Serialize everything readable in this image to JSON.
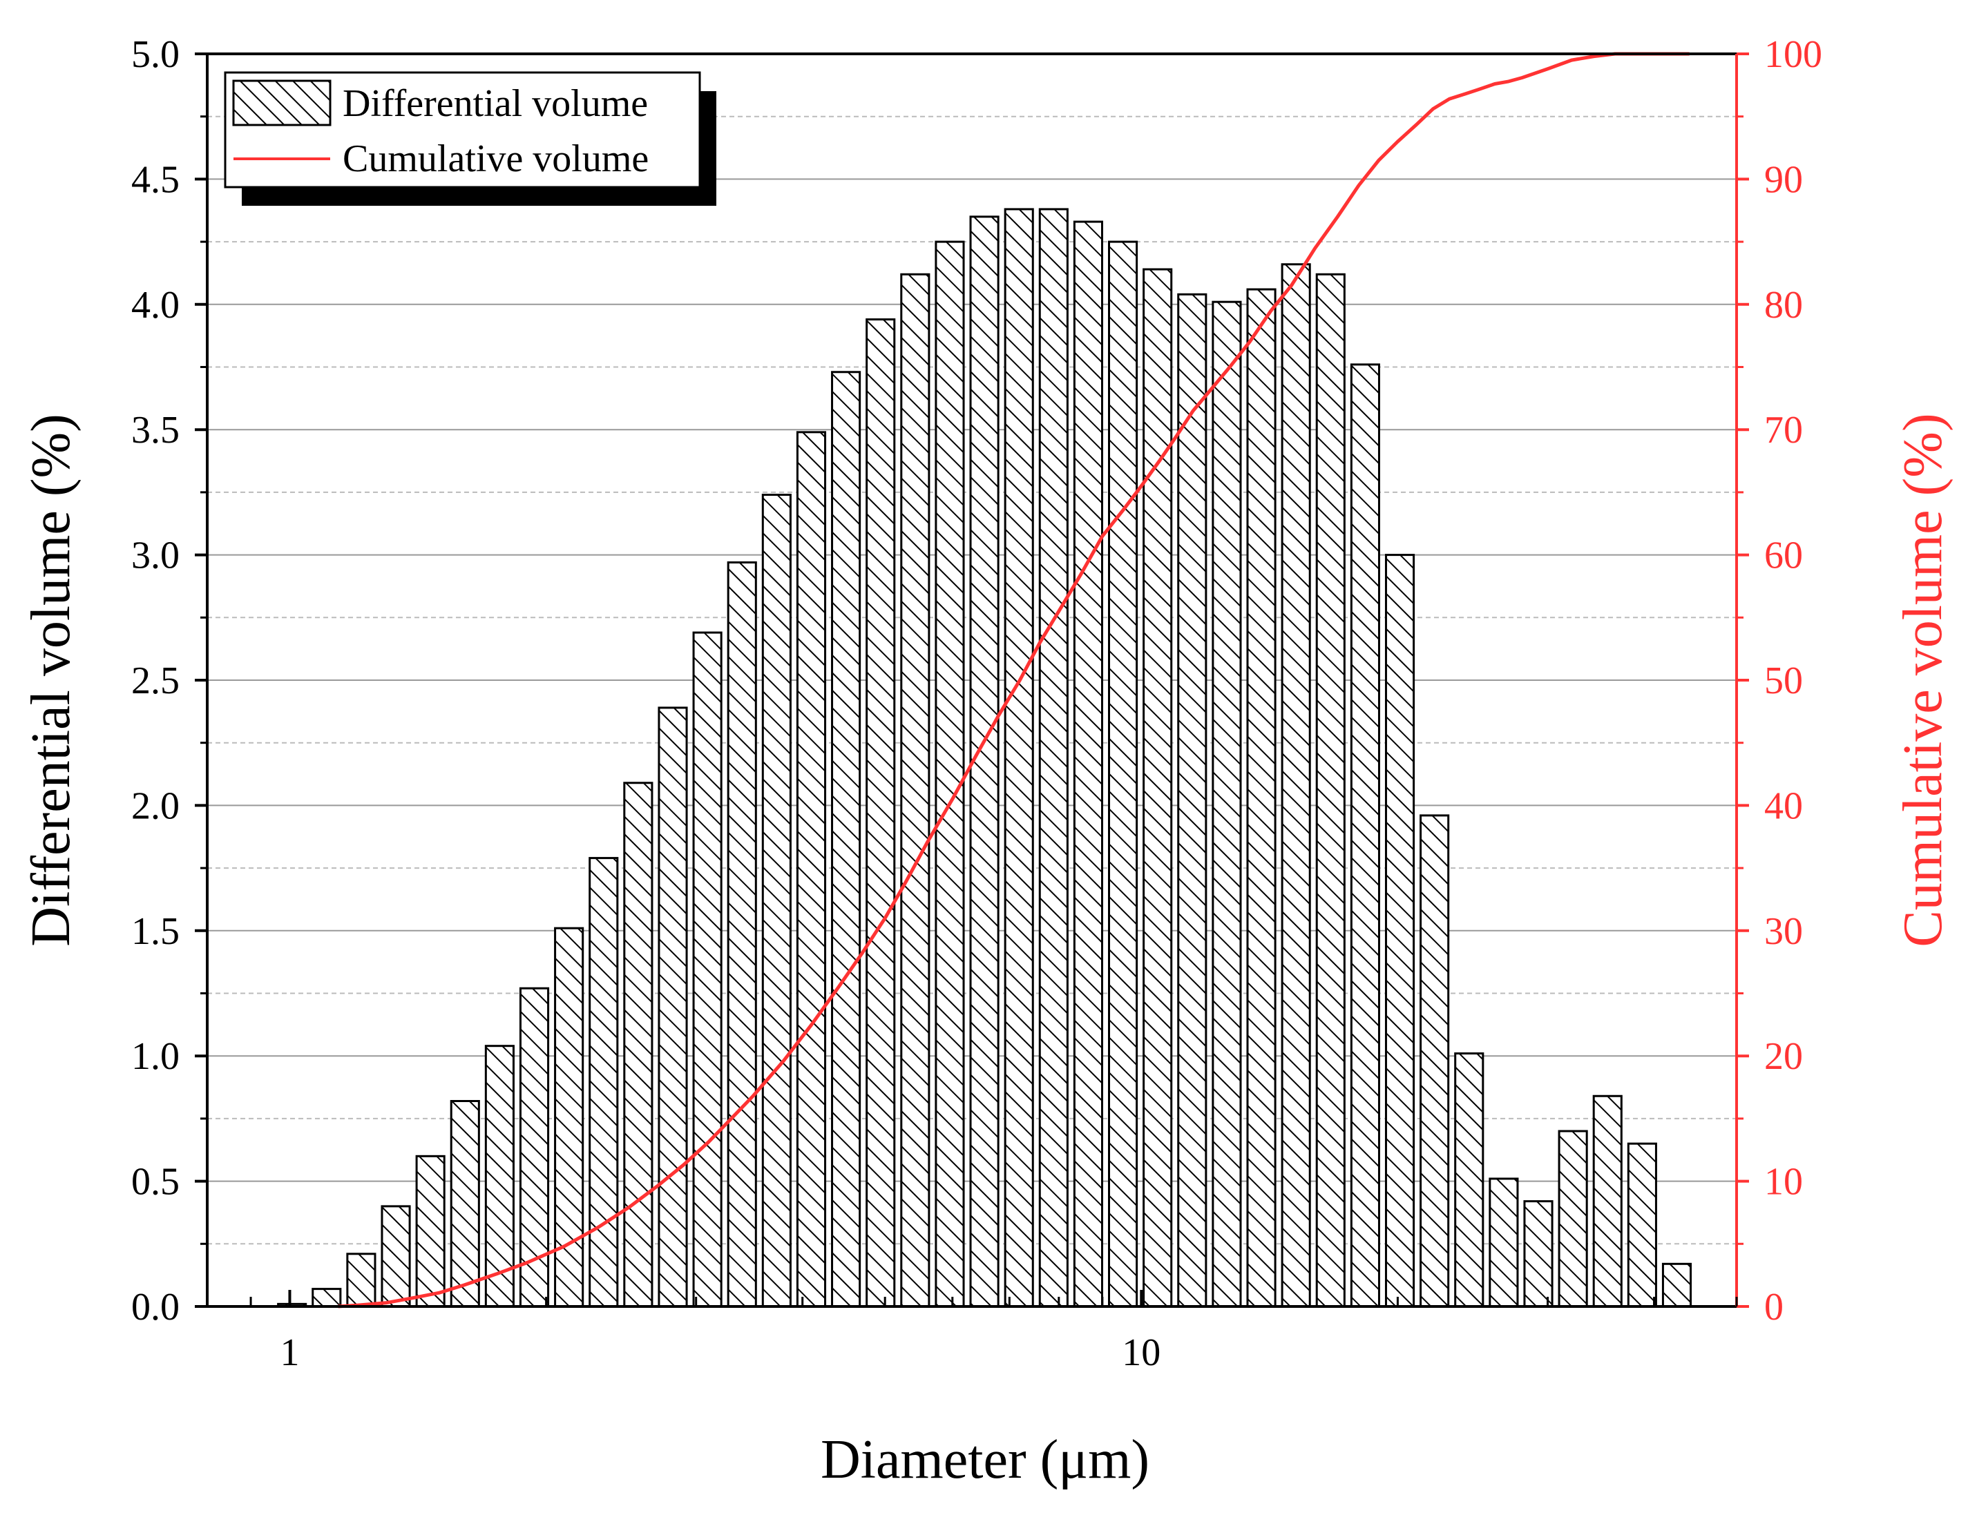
{
  "colors": {
    "bar_stroke": "#000000",
    "cumulative_line": "#ff3333",
    "right_axis": "#ff3333",
    "major_grid": "#999999",
    "minor_grid": "#bbbbbb"
  },
  "chart_data": {
    "type": "bar",
    "x_scale": "log",
    "xlabel": "Diameter (μm)",
    "ylabel": "Differential volume (%)",
    "y2label": "Cumulative volume (%)",
    "xlim": [
      0.8,
      50
    ],
    "ylim": [
      0,
      5.0
    ],
    "y2lim": [
      0,
      100
    ],
    "x_ticks": [
      1,
      10
    ],
    "x_tick_labels": [
      "1",
      "10"
    ],
    "y_ticks": [
      0.0,
      0.5,
      1.0,
      1.5,
      2.0,
      2.5,
      3.0,
      3.5,
      4.0,
      4.5,
      5.0
    ],
    "y_tick_labels": [
      "0.0",
      "0.5",
      "1.0",
      "1.5",
      "2.0",
      "2.5",
      "3.0",
      "3.5",
      "4.0",
      "4.5",
      "5.0"
    ],
    "y2_ticks": [
      0,
      10,
      20,
      30,
      40,
      50,
      60,
      70,
      80,
      90,
      100
    ],
    "y2_tick_labels": [
      "0",
      "10",
      "20",
      "30",
      "40",
      "50",
      "60",
      "70",
      "80",
      "90",
      "100"
    ],
    "grid": "horizontal major and minor",
    "legend": {
      "position": "top-left",
      "entries": [
        "Differential volume",
        "Cumulative volume"
      ]
    },
    "series": [
      {
        "name": "Differential volume",
        "type": "bar",
        "pattern": "hatched",
        "x": [
          1.006,
          1.105,
          1.213,
          1.332,
          1.463,
          1.606,
          1.764,
          1.937,
          2.127,
          2.336,
          2.565,
          2.817,
          3.093,
          3.397,
          3.73,
          4.096,
          4.498,
          4.939,
          5.424,
          5.956,
          6.541,
          7.183,
          7.888,
          8.662,
          9.512,
          10.45,
          11.47,
          12.6,
          13.83,
          15.19,
          16.68,
          18.32,
          20.12,
          22.09,
          24.26,
          26.64,
          29.25,
          32.12,
          35.28,
          38.74,
          42.54
        ],
        "values": [
          0.01,
          0.07,
          0.21,
          0.4,
          0.6,
          0.82,
          1.04,
          1.27,
          1.51,
          1.79,
          2.09,
          2.39,
          2.69,
          2.97,
          3.24,
          3.49,
          3.73,
          3.94,
          4.12,
          4.25,
          4.35,
          4.38,
          4.38,
          4.33,
          4.25,
          4.14,
          4.04,
          4.01,
          4.06,
          4.16,
          4.12,
          3.76,
          3.0,
          1.96,
          1.01,
          0.51,
          0.42,
          0.7,
          0.84,
          0.65,
          0.17
        ]
      },
      {
        "name": "Cumulative volume",
        "type": "line",
        "axis": "right",
        "x": [
          1.14,
          1.2,
          1.3,
          1.4,
          1.5,
          1.6,
          1.75,
          1.9,
          2.1,
          2.3,
          2.5,
          2.7,
          2.9,
          3.1,
          3.3,
          3.5,
          3.8,
          4.1,
          4.4,
          4.7,
          5.0,
          5.3,
          5.6,
          6.0,
          6.4,
          6.8,
          7.2,
          7.6,
          8.0,
          8.5,
          9.0,
          9.5,
          10.0,
          10.5,
          11.0,
          11.5,
          12.0,
          12.7,
          13.4,
          14.2,
          15.0,
          16.0,
          17.0,
          18.0,
          19.0,
          20.0,
          21.0,
          22.0,
          23.0,
          24.0,
          25.0,
          26.0,
          27.0,
          28.0,
          30.0,
          32.0,
          34.0,
          36.0,
          38.0,
          40.0,
          42.0,
          44.0
        ],
        "values": [
          0.0,
          0.1,
          0.3,
          0.7,
          1.1,
          1.7,
          2.6,
          3.5,
          4.8,
          6.3,
          7.9,
          9.6,
          11.3,
          13.1,
          15.0,
          16.8,
          19.6,
          22.5,
          25.4,
          28.2,
          31.0,
          34.0,
          37.0,
          40.5,
          44.0,
          47.2,
          50.0,
          53.0,
          55.5,
          58.5,
          61.5,
          63.5,
          65.5,
          67.5,
          69.5,
          71.5,
          73.0,
          75.0,
          77.0,
          79.5,
          81.5,
          84.5,
          87.0,
          89.5,
          91.5,
          93.0,
          94.3,
          95.6,
          96.4,
          96.8,
          97.2,
          97.6,
          97.8,
          98.1,
          98.8,
          99.5,
          99.8,
          100.0,
          100.0,
          100.0,
          100.0,
          100.0
        ]
      }
    ]
  }
}
